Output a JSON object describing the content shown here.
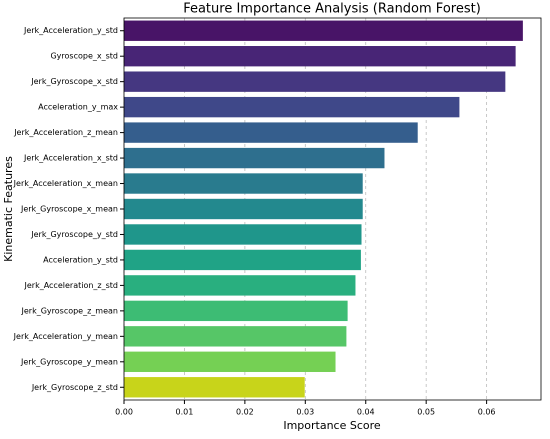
{
  "chart_data": {
    "type": "barh",
    "title": "Feature Importance Analysis (Random Forest)",
    "x_label": "Importance Score",
    "y_label": "Kinematic Features",
    "categories": [
      "Jerk_Acceleration_y_std",
      "Gyroscope_x_std",
      "Jerk_Gyroscope_x_std",
      "Acceleration_y_max",
      "Jerk_Acceleration_z_mean",
      "Jerk_Acceleration_x_std",
      "Jerk_Acceleration_x_mean",
      "Jerk_Gyroscope_x_mean",
      "Jerk_Gyroscope_y_std",
      "Acceleration_y_std",
      "Jerk_Acceleration_z_std",
      "Jerk_Gyroscope_z_mean",
      "Jerk_Acceleration_y_mean",
      "Jerk_Gyroscope_y_mean",
      "Jerk_Gyroscope_z_std"
    ],
    "values": [
      0.066,
      0.0648,
      0.0631,
      0.0555,
      0.0486,
      0.0431,
      0.0395,
      0.0395,
      0.0393,
      0.0392,
      0.0383,
      0.037,
      0.0368,
      0.035,
      0.0299
    ],
    "colors": [
      "#481467",
      "#482576",
      "#453781",
      "#3f4889",
      "#355e8d",
      "#2e6f8e",
      "#297b8e",
      "#23898e",
      "#1f968b",
      "#20a386",
      "#29af7f",
      "#3dbc74",
      "#56c667",
      "#75d054",
      "#c8d41a"
    ],
    "xlim": [
      0,
      0.069
    ],
    "xticks": [
      {
        "value": 0,
        "label": "0.00"
      },
      {
        "value": 0.01,
        "label": "0.01"
      },
      {
        "value": 0.02,
        "label": "0.02"
      },
      {
        "value": 0.03,
        "label": "0.03"
      },
      {
        "value": 0.04,
        "label": "0.04"
      },
      {
        "value": 0.05,
        "label": "0.05"
      },
      {
        "value": 0.06,
        "label": "0.06"
      }
    ],
    "grid": true
  }
}
